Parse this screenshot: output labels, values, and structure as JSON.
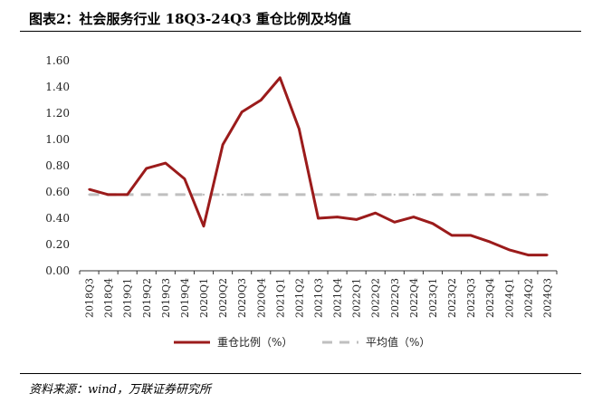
{
  "title": "图表2：社会服务行业 18Q3-24Q3 重仓比例及均值",
  "source": "资料来源：wind，万联证券研究所",
  "chart_data": {
    "type": "line",
    "title": "图表2：社会服务行业 18Q3-24Q3 重仓比例及均值",
    "xlabel": "",
    "ylabel": "",
    "categories": [
      "2018Q3",
      "2018Q4",
      "2019Q1",
      "2019Q2",
      "2019Q3",
      "2019Q4",
      "2020Q1",
      "2020Q2",
      "2020Q3",
      "2020Q4",
      "2021Q1",
      "2021Q2",
      "2021Q3",
      "2021Q4",
      "2022Q1",
      "2022Q2",
      "2022Q3",
      "2022Q4",
      "2023Q1",
      "2023Q2",
      "2023Q3",
      "2023Q4",
      "2024Q1",
      "2024Q2",
      "2024Q3"
    ],
    "ylim": [
      0,
      1.6
    ],
    "yticks": [
      "0.00",
      "0.20",
      "0.40",
      "0.60",
      "0.80",
      "1.00",
      "1.20",
      "1.40",
      "1.60"
    ],
    "grid": false,
    "legend_position": "bottom",
    "series": [
      {
        "name": "重仓比例（%）",
        "color": "#9B1B1B",
        "style": "solid",
        "values": [
          0.62,
          0.58,
          0.58,
          0.78,
          0.82,
          0.7,
          0.34,
          0.96,
          1.21,
          1.3,
          1.47,
          1.08,
          0.4,
          0.41,
          0.39,
          0.44,
          0.37,
          0.41,
          0.36,
          0.27,
          0.27,
          0.22,
          0.16,
          0.12,
          0.12
        ]
      },
      {
        "name": "平均值（%）",
        "color": "#BFBFBF",
        "style": "dashed",
        "values": [
          0.58,
          0.58,
          0.58,
          0.58,
          0.58,
          0.58,
          0.58,
          0.58,
          0.58,
          0.58,
          0.58,
          0.58,
          0.58,
          0.58,
          0.58,
          0.58,
          0.58,
          0.58,
          0.58,
          0.58,
          0.58,
          0.58,
          0.58,
          0.58,
          0.58
        ]
      }
    ]
  }
}
